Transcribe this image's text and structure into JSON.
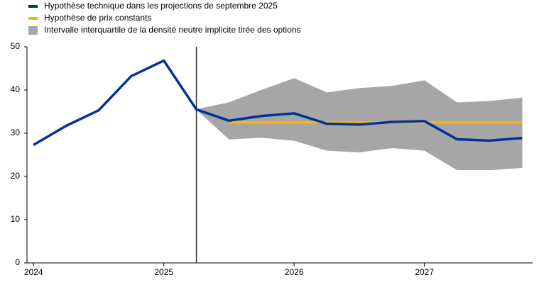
{
  "chart_data": {
    "type": "line",
    "x": [
      2024,
      2024.25,
      2024.5,
      2024.75,
      2025,
      2025.25,
      2025.5,
      2025.75,
      2026,
      2026.25,
      2026.5,
      2026.75,
      2027,
      2027.25,
      2027.5,
      2027.75
    ],
    "series": [
      {
        "name": "Hypothèse technique dans les projections de septembre 2025",
        "color": "#003299",
        "values": [
          27.3,
          31.7,
          35.3,
          43.2,
          46.8,
          35.5,
          32.9,
          34.0,
          34.6,
          32.2,
          32.0,
          32.6,
          32.8,
          28.6,
          28.3,
          28.9
        ]
      },
      {
        "name": "Hypothèse de prix constants",
        "color": "#ffb400",
        "values": [
          null,
          null,
          null,
          null,
          null,
          null,
          32.5,
          32.5,
          32.5,
          32.5,
          32.5,
          32.5,
          32.5,
          32.5,
          32.5,
          32.5
        ]
      }
    ],
    "band": {
      "name": "Intervalle interquartile de la densité neutre implicite tirée des options",
      "color": "#a6a6a6",
      "lower": [
        null,
        null,
        null,
        null,
        null,
        35.5,
        28.6,
        29.0,
        28.3,
        26.0,
        25.6,
        26.6,
        26.0,
        21.5,
        21.5,
        22.0
      ],
      "upper": [
        null,
        null,
        null,
        null,
        null,
        35.5,
        37.1,
        40.0,
        42.7,
        39.4,
        40.4,
        40.9,
        42.2,
        37.1,
        37.4,
        38.2
      ]
    },
    "vline": 2025.25,
    "xlim": [
      2023.95,
      2027.83
    ],
    "xticks": [
      2024,
      2025,
      2026,
      2027
    ],
    "ylim": [
      0,
      50
    ],
    "yticks": [
      0,
      10,
      20,
      30,
      40,
      50
    ]
  }
}
